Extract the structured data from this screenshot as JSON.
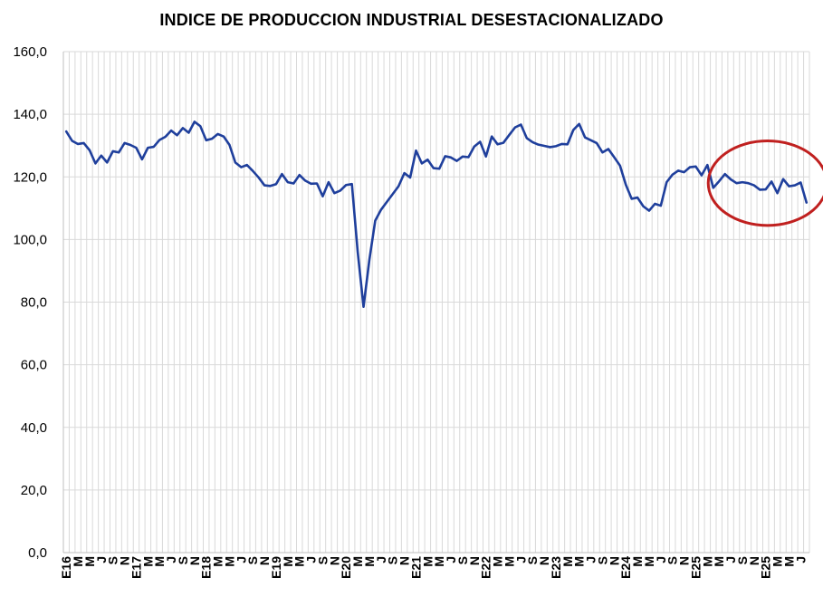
{
  "chart_data": {
    "type": "line",
    "title": "INDICE DE PRODUCCION INDUSTRIAL DESESTACIONALIZADO",
    "xlabel": "",
    "ylabel": "",
    "ylim": [
      0,
      160
    ],
    "yticks": [
      "0,0",
      "20,0",
      "40,0",
      "60,0",
      "80,0",
      "100,0",
      "120,0",
      "140,0",
      "160,0"
    ],
    "y_tick_values": [
      0,
      20,
      40,
      60,
      80,
      100,
      120,
      140,
      160
    ],
    "grid": true,
    "x_tick_labels": [
      "E16",
      "M",
      "M",
      "J",
      "S",
      "N",
      "E17",
      "M",
      "M",
      "J",
      "S",
      "N",
      "E18",
      "M",
      "M",
      "J",
      "S",
      "N",
      "E19",
      "M",
      "M",
      "J",
      "S",
      "N",
      "E20",
      "M",
      "M",
      "J",
      "S",
      "N",
      "E21",
      "M",
      "M",
      "J",
      "S",
      "N",
      "E22",
      "M",
      "M",
      "J",
      "S",
      "N",
      "E23",
      "M",
      "M",
      "J",
      "S",
      "N",
      "E24",
      "M",
      "M",
      "J",
      "S",
      "N",
      "E25",
      "M",
      "M",
      "J",
      "S",
      "N",
      "E25",
      "M",
      "M",
      "J"
    ],
    "series": [
      {
        "color": "#1f3f9c",
        "values": [
          134.5,
          131.5,
          130.5,
          130.8,
          128.5,
          124.3,
          126.8,
          124.6,
          128.2,
          127.8,
          130.8,
          130.2,
          129.3,
          125.6,
          129.3,
          129.6,
          131.8,
          132.8,
          134.8,
          133.3,
          135.6,
          134.1,
          137.6,
          136.2,
          131.7,
          132.2,
          133.7,
          132.9,
          130.2,
          124.6,
          123.1,
          123.8,
          121.9,
          119.8,
          117.3,
          117.1,
          117.7,
          120.9,
          118.3,
          117.9,
          120.6,
          118.8,
          117.8,
          117.9,
          113.8,
          118.3,
          114.8,
          115.6,
          117.4,
          117.7,
          96.0,
          78.5,
          93.5,
          106.0,
          109.5,
          112.0,
          114.5,
          117.0,
          121.2,
          119.8,
          128.4,
          124.3,
          125.5,
          122.8,
          122.6,
          126.6,
          126.2,
          125.1,
          126.5,
          126.3,
          129.7,
          131.2,
          126.5,
          132.9,
          130.4,
          130.9,
          133.4,
          135.8,
          136.7,
          132.4,
          131.1,
          130.3,
          129.9,
          129.5,
          129.8,
          130.5,
          130.4,
          135.0,
          136.9,
          132.6,
          131.7,
          130.8,
          127.8,
          128.9,
          126.3,
          123.6,
          117.5,
          113.0,
          113.4,
          110.6,
          109.2,
          111.4,
          110.8,
          118.3,
          120.7,
          122.0,
          121.5,
          123.1,
          123.3,
          120.5,
          123.8,
          116.5,
          118.6,
          120.9,
          119.2,
          118.0,
          118.3,
          118.0,
          117.3,
          115.9,
          116.0,
          118.5,
          114.8,
          119.3,
          117.0,
          117.3,
          118.2,
          111.8
        ]
      }
    ]
  },
  "annotation": {
    "shape": "ellipse",
    "color": "#c0201f"
  }
}
